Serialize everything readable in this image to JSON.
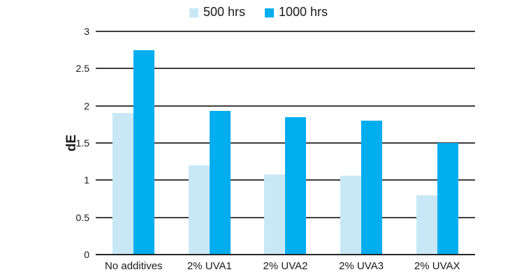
{
  "chart_data": {
    "type": "bar",
    "title": "",
    "xlabel": "",
    "ylabel": "dE",
    "ylim": [
      0,
      3
    ],
    "yticks": [
      0,
      0.5,
      1,
      1.5,
      2,
      2.5,
      3
    ],
    "grid": true,
    "legend_position": "top",
    "categories": [
      "No additives",
      "2% UVA1",
      "2% UVA2",
      "2% UVA3",
      "2% UVAX"
    ],
    "series": [
      {
        "name": "500 hrs",
        "color": "#c9e8f6",
        "values": [
          1.9,
          1.2,
          1.08,
          1.06,
          0.8
        ]
      },
      {
        "name": "1000 hrs",
        "color": "#00aeef",
        "values": [
          2.75,
          1.93,
          1.85,
          1.8,
          1.5
        ]
      }
    ],
    "colors": {
      "gridline": "#3f3f3f",
      "axis": "#262626",
      "text": "#1a1a1a",
      "background": "#ffffff"
    }
  }
}
